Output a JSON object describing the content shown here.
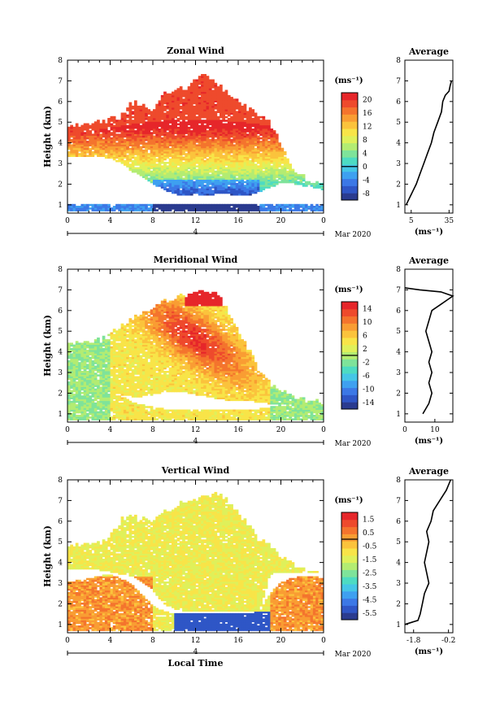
{
  "chart_data": [
    {
      "type": "heatmap",
      "title": "Zonal Wind",
      "xlabel": "",
      "ylabel": "Height (km)",
      "x_ticks": [
        "0",
        "4",
        "8",
        "12",
        "16",
        "20",
        "0"
      ],
      "xlim": [
        0,
        24
      ],
      "y_ticks": [
        "1",
        "2",
        "3",
        "4",
        "5",
        "6",
        "7",
        "8"
      ],
      "ylim": [
        0.6,
        8
      ],
      "date_axis": {
        "label": "4",
        "date": "Mar 2020"
      },
      "colorbar": {
        "unit": "(ms⁻¹)",
        "ticks": [
          "-8",
          "-4",
          "0",
          "4",
          "8",
          "12",
          "16",
          "20"
        ],
        "range": [
          -10,
          22
        ]
      },
      "field": {
        "kind": "zonal",
        "top_km": [
          4.8,
          4.8,
          4.8,
          5.0,
          5.1,
          5.2,
          6.0,
          5.8,
          5.5,
          6.3,
          6.6,
          6.5,
          7.1,
          7.3,
          6.8,
          6.4,
          6.0,
          5.6,
          5.3,
          4.9,
          3.9,
          2.7,
          2.4,
          2.0,
          2.1
        ],
        "layer_top_km": [
          1.0,
          1.0,
          1.0,
          1.0,
          1.0,
          1.0,
          1.0,
          1.0,
          1.0,
          1.0,
          1.0,
          1.0,
          1.0,
          1.0,
          1.0,
          1.0,
          1.0,
          1.0,
          1.0,
          1.0,
          1.0,
          1.0,
          1.0,
          1.0,
          1.0
        ],
        "gap_km": [
          3.3,
          3.3,
          3.3,
          3.3,
          3.2,
          3.0,
          2.6,
          2.3,
          2.0,
          1.7,
          1.5,
          1.4,
          1.5,
          1.4,
          1.5,
          1.5,
          1.4,
          1.4,
          1.6,
          1.8,
          2.0,
          2.0,
          1.9,
          1.8,
          1.7
        ]
      },
      "profile": {
        "title": "Average",
        "xlabel": "(ms⁻¹)",
        "x_ticks": [
          "5",
          "35"
        ],
        "xlim": [
          0,
          38
        ],
        "height_km": [
          1.0,
          1.5,
          2.0,
          2.5,
          3.0,
          3.5,
          4.0,
          4.5,
          5.0,
          5.5,
          6.0,
          6.3,
          6.5,
          6.8,
          7.0
        ],
        "values": [
          1,
          5,
          9,
          12,
          15,
          18,
          21,
          23,
          26,
          29,
          30,
          32,
          35,
          36,
          37
        ]
      }
    },
    {
      "type": "heatmap",
      "title": "Meridional Wind",
      "xlabel": "",
      "ylabel": "Height (km)",
      "x_ticks": [
        "0",
        "4",
        "8",
        "12",
        "16",
        "20",
        "0"
      ],
      "xlim": [
        0,
        24
      ],
      "y_ticks": [
        "1",
        "2",
        "3",
        "4",
        "5",
        "6",
        "7",
        "8"
      ],
      "ylim": [
        0.6,
        8
      ],
      "date_axis": {
        "label": "4",
        "date": "Mar 2020"
      },
      "colorbar": {
        "unit": "(ms⁻¹)",
        "ticks": [
          "-14",
          "-10",
          "-6",
          "-2",
          "2",
          "6",
          "10",
          "14"
        ],
        "range": [
          -16,
          16
        ]
      },
      "field": {
        "kind": "meridional",
        "top_km": [
          4.4,
          4.4,
          4.4,
          4.6,
          4.8,
          5.2,
          5.6,
          5.8,
          6.1,
          6.4,
          6.6,
          6.7,
          6.9,
          6.9,
          6.8,
          6.0,
          5.0,
          4.1,
          3.0,
          2.4,
          2.1,
          1.8,
          1.7,
          1.6,
          1.5
        ],
        "layer_top_km": [
          3.2,
          3.0,
          2.6,
          2.2,
          2.0,
          1.8,
          1.6,
          1.4,
          1.3,
          1.2,
          1.2,
          1.2,
          1.2,
          1.2,
          1.2,
          1.2,
          1.2,
          1.2,
          1.2,
          1.3,
          1.5,
          1.6,
          1.6,
          1.7,
          1.6
        ],
        "gap_km": [
          2.5,
          2.4,
          2.2,
          2.1,
          2.0,
          1.9,
          1.8,
          1.8,
          1.9,
          2.0,
          2.0,
          2.0,
          1.9,
          1.8,
          1.7,
          1.6,
          1.6,
          1.6,
          1.5,
          1.4,
          1.4,
          1.4,
          1.4,
          1.4,
          1.4
        ]
      },
      "profile": {
        "title": "Average",
        "xlabel": "(ms⁻¹)",
        "x_ticks": [
          "0",
          "10"
        ],
        "xlim": [
          0,
          16
        ],
        "height_km": [
          1.0,
          1.5,
          2.0,
          2.5,
          3.0,
          3.5,
          4.0,
          4.5,
          5.0,
          5.5,
          6.0,
          6.3,
          6.5,
          6.7,
          6.9,
          7.0,
          7.1
        ],
        "values": [
          6,
          8,
          9,
          8,
          9,
          8,
          9,
          8,
          7,
          8,
          9,
          12,
          14,
          16,
          12,
          5,
          0
        ]
      }
    },
    {
      "type": "heatmap",
      "title": "Vertical Wind",
      "xlabel": "Local Time",
      "ylabel": "Height (km)",
      "x_ticks": [
        "0",
        "4",
        "8",
        "12",
        "16",
        "20",
        "0"
      ],
      "xlim": [
        0,
        24
      ],
      "y_ticks": [
        "1",
        "2",
        "3",
        "4",
        "5",
        "6",
        "7",
        "8"
      ],
      "ylim": [
        0.6,
        8
      ],
      "date_axis": {
        "label": "4",
        "date": "Mar 2020"
      },
      "colorbar": {
        "unit": "(ms⁻¹)",
        "ticks": [
          "-5.5",
          "-4.5",
          "-3.5",
          "-2.5",
          "-1.5",
          "-0.5",
          "0.5",
          "1.5"
        ],
        "range": [
          -6.0,
          2.0
        ]
      },
      "field": {
        "kind": "vertical",
        "top_km": [
          4.8,
          4.8,
          4.8,
          4.9,
          5.2,
          6.0,
          6.3,
          6.1,
          6.0,
          6.4,
          6.7,
          6.9,
          7.0,
          7.2,
          7.3,
          7.0,
          6.4,
          5.8,
          5.0,
          4.8,
          4.2,
          3.9,
          3.7,
          3.5,
          3.3
        ],
        "layer_top_km": [
          3.0,
          3.1,
          3.2,
          3.3,
          3.4,
          3.2,
          2.9,
          2.4,
          1.9,
          1.6,
          1.5,
          1.5,
          1.5,
          1.5,
          1.5,
          1.5,
          1.5,
          1.5,
          1.6,
          2.5,
          3.0,
          3.2,
          3.3,
          3.3,
          3.2
        ],
        "gap_km": [
          3.6,
          3.6,
          3.6,
          3.6,
          3.5,
          3.4,
          3.3,
          3.0,
          2.6,
          2.0,
          1.7,
          1.6,
          1.6,
          1.6,
          1.6,
          1.6,
          1.6,
          1.6,
          1.6,
          3.4,
          3.5,
          3.5,
          3.5,
          3.5,
          3.5
        ]
      },
      "profile": {
        "title": "Average",
        "xlabel": "(ms⁻¹)",
        "x_ticks": [
          "-1.8",
          "-0.2"
        ],
        "xlim": [
          -2.2,
          0
        ],
        "height_km": [
          1.0,
          1.2,
          1.5,
          2.0,
          2.5,
          3.0,
          3.5,
          4.0,
          4.5,
          5.0,
          5.5,
          6.0,
          6.5,
          7.0,
          7.5,
          8.0
        ],
        "values": [
          -2.2,
          -1.6,
          -1.5,
          -1.4,
          -1.3,
          -1.1,
          -1.2,
          -1.3,
          -1.2,
          -1.1,
          -1.2,
          -1.0,
          -0.9,
          -0.6,
          -0.3,
          -0.1
        ]
      }
    }
  ]
}
